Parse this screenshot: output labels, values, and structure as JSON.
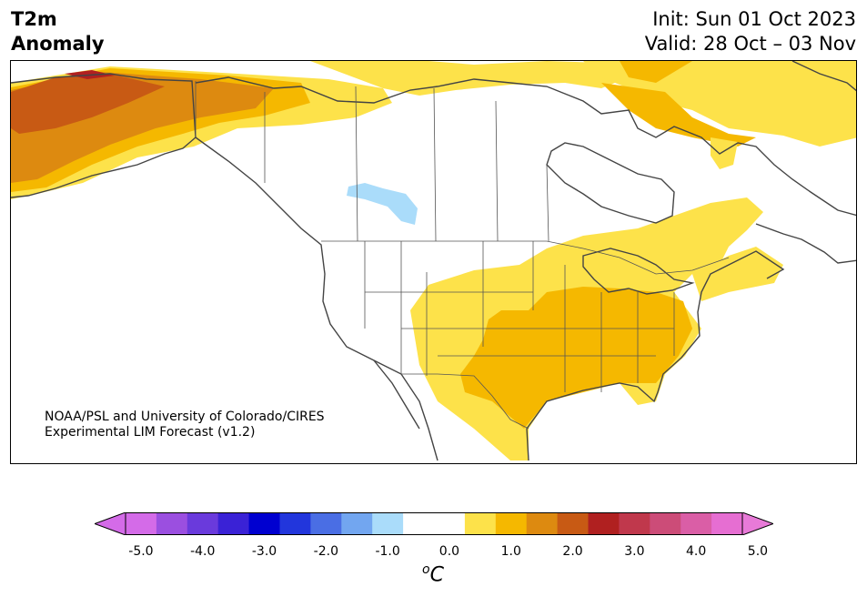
{
  "title": {
    "left_line1": "T2m",
    "left_line2": "Anomaly",
    "init": "Init: Sun 01 Oct 2023",
    "valid": "Valid: 28 Oct – 03 Nov"
  },
  "credit": {
    "line1": "NOAA/PSL and University of Colorado/CIRES",
    "line2": "Experimental LIM Forecast (v1.2)"
  },
  "colorbar": {
    "unit_base": "C",
    "unit_sup": "o",
    "tick_labels": [
      "-5.0",
      "-4.0",
      "-3.0",
      "-2.0",
      "-1.0",
      "0.0",
      "1.0",
      "2.0",
      "3.0",
      "4.0",
      "5.0"
    ],
    "colors": [
      "#d46be8",
      "#9b4fe0",
      "#6a3adc",
      "#3a22d6",
      "#0000d0",
      "#2236dc",
      "#4a6ee4",
      "#72a6f0",
      "#aadcfa",
      "#ffffff",
      "#ffffff",
      "#fde24a",
      "#f5b800",
      "#dd8a10",
      "#c85a14",
      "#b02020",
      "#c0384c",
      "#cc4c78",
      "#da5ea6",
      "#e66ed2"
    ],
    "under_color": "#d46be8",
    "over_color": "#e87ad8"
  },
  "map": {
    "region": "North America",
    "variable": "2m temperature anomaly",
    "palette": {
      "warm1": "#fde24a",
      "warm2": "#f5b800",
      "warm3": "#dd8a10",
      "warm4": "#c85a14",
      "warm5": "#b02020",
      "cool1": "#aadcfa",
      "coast": "#444444"
    }
  }
}
